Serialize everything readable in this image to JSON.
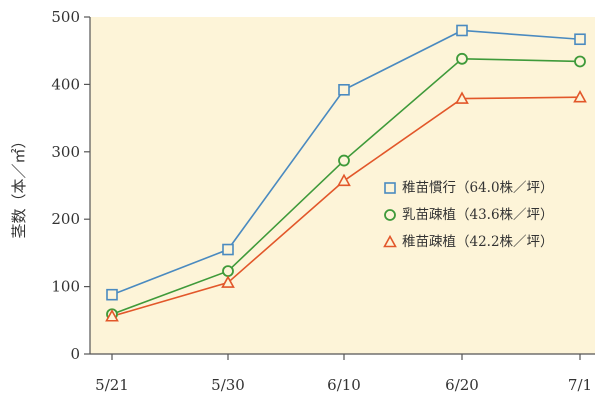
{
  "chart_data": {
    "type": "line",
    "ylabel": "茎数（本／㎡）",
    "xlabel": "",
    "title": "",
    "categories": [
      "5/21",
      "5/30",
      "6/10",
      "6/20",
      "7/1"
    ],
    "yticks": [
      "0",
      "100",
      "200",
      "300",
      "400",
      "500"
    ],
    "ylim": [
      0,
      500
    ],
    "grid": false,
    "legend_position": "right-middle",
    "background_color": "#fdf4d8",
    "series": [
      {
        "name": "稚苗慣行（64.0株／坪）",
        "values": [
          88,
          155,
          392,
          480,
          467
        ],
        "color": "#4a8ac0",
        "marker": "square"
      },
      {
        "name": "乳苗疎植（43.6株／坪）",
        "values": [
          59,
          123,
          287,
          438,
          434
        ],
        "color": "#3f9a3a",
        "marker": "circle"
      },
      {
        "name": "稚苗疎植（42.2株／坪）",
        "values": [
          56,
          106,
          257,
          379,
          381
        ],
        "color": "#e2572a",
        "marker": "triangle"
      }
    ]
  }
}
